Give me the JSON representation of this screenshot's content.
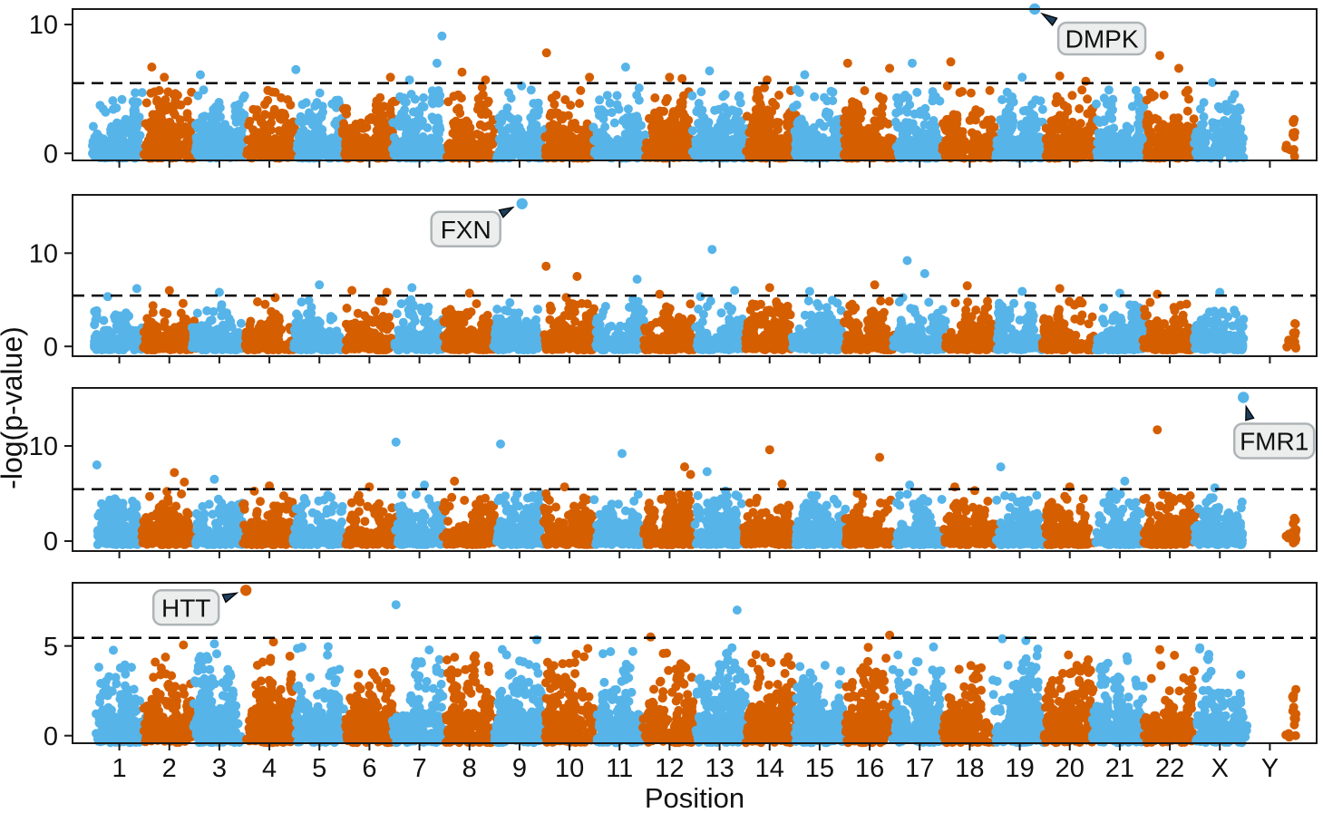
{
  "chart_data": {
    "type": "scatter",
    "subtype": "manhattan",
    "xlabel": "Position",
    "ylabel": "-log(p-value)",
    "categories": [
      "1",
      "2",
      "3",
      "4",
      "5",
      "6",
      "7",
      "8",
      "9",
      "10",
      "11",
      "12",
      "13",
      "14",
      "15",
      "16",
      "17",
      "18",
      "19",
      "20",
      "21",
      "22",
      "X",
      "Y"
    ],
    "threshold": 5.45,
    "grid": false,
    "seed": 11,
    "colors": {
      "chrom_odd": "#56B4E9",
      "chrom_even": "#D55E00",
      "threshold": "#000000",
      "box_fill": "#ECEEEE",
      "box_border": "#AEB4B6",
      "arrow": "#1C3F5E"
    },
    "panels": [
      {
        "gene": "DMPK",
        "ylim": [
          -0.55,
          11.2
        ],
        "yticks": [
          10,
          0
        ],
        "hit": {
          "chrom": "19",
          "frac": 0.8,
          "value": 11.2
        },
        "peaks": [
          [
            "2",
            0.15,
            6.7
          ],
          [
            "2",
            0.4,
            5.9
          ],
          [
            "3",
            0.12,
            6.1
          ],
          [
            "5",
            0.03,
            6.5
          ],
          [
            "6",
            0.92,
            5.9
          ],
          [
            "7",
            0.95,
            9.1
          ],
          [
            "7",
            0.85,
            7.0
          ],
          [
            "7",
            0.3,
            5.7
          ],
          [
            "8",
            0.35,
            6.3
          ],
          [
            "8",
            0.82,
            5.7
          ],
          [
            "10",
            0.04,
            7.8
          ],
          [
            "10",
            0.9,
            5.9
          ],
          [
            "11",
            0.62,
            6.7
          ],
          [
            "12",
            0.5,
            5.9
          ],
          [
            "12",
            0.75,
            5.8
          ],
          [
            "13",
            0.3,
            6.4
          ],
          [
            "14",
            0.45,
            5.7
          ],
          [
            "15",
            0.2,
            6.1
          ],
          [
            "16",
            0.06,
            7.0
          ],
          [
            "16",
            0.9,
            6.6
          ],
          [
            "17",
            0.35,
            7.0
          ],
          [
            "18",
            0.12,
            7.1
          ],
          [
            "19",
            0.55,
            5.9
          ],
          [
            "20",
            0.3,
            6.0
          ],
          [
            "20",
            0.82,
            5.6
          ],
          [
            "22",
            0.3,
            7.6
          ],
          [
            "22",
            0.68,
            6.6
          ],
          [
            "X",
            0.35,
            5.5
          ]
        ]
      },
      {
        "gene": "FXN",
        "ylim": [
          -1.05,
          16.25
        ],
        "yticks": [
          10,
          0
        ],
        "hit": {
          "chrom": "9",
          "frac": 0.55,
          "value": 15.3
        },
        "peaks": [
          [
            "1",
            0.85,
            6.2
          ],
          [
            "2",
            0.5,
            6.0
          ],
          [
            "3",
            0.5,
            5.8
          ],
          [
            "5",
            0.5,
            6.6
          ],
          [
            "6",
            0.15,
            6.0
          ],
          [
            "6",
            0.85,
            5.8
          ],
          [
            "7",
            0.35,
            6.3
          ],
          [
            "8",
            0.5,
            5.7
          ],
          [
            "10",
            0.03,
            8.6
          ],
          [
            "10",
            0.65,
            7.5
          ],
          [
            "11",
            0.85,
            7.2
          ],
          [
            "12",
            0.3,
            5.6
          ],
          [
            "13",
            0.35,
            10.4
          ],
          [
            "13",
            0.8,
            6.0
          ],
          [
            "14",
            0.5,
            6.3
          ],
          [
            "15",
            0.3,
            5.9
          ],
          [
            "16",
            0.6,
            6.6
          ],
          [
            "17",
            0.25,
            9.2
          ],
          [
            "17",
            0.6,
            7.8
          ],
          [
            "18",
            0.45,
            6.5
          ],
          [
            "19",
            0.55,
            5.9
          ],
          [
            "20",
            0.3,
            6.2
          ],
          [
            "21",
            0.5,
            5.7
          ],
          [
            "22",
            0.25,
            5.6
          ],
          [
            "X",
            0.5,
            5.8
          ]
        ]
      },
      {
        "gene": "FMR1",
        "ylim": [
          -1.05,
          16.1
        ],
        "yticks": [
          10,
          0
        ],
        "hit": {
          "chrom": "X",
          "frac": 0.97,
          "value": 15.1
        },
        "peaks": [
          [
            "1",
            0.05,
            8.0
          ],
          [
            "2",
            0.6,
            7.2
          ],
          [
            "2",
            0.8,
            6.2
          ],
          [
            "3",
            0.4,
            6.5
          ],
          [
            "4",
            0.5,
            5.8
          ],
          [
            "6",
            0.5,
            5.7
          ],
          [
            "7",
            0.03,
            10.4
          ],
          [
            "7",
            0.6,
            5.9
          ],
          [
            "8",
            0.2,
            6.3
          ],
          [
            "9",
            0.12,
            10.2
          ],
          [
            "10",
            0.4,
            5.7
          ],
          [
            "11",
            0.55,
            9.2
          ],
          [
            "12",
            0.8,
            7.8
          ],
          [
            "12",
            0.92,
            7.0
          ],
          [
            "13",
            0.25,
            7.3
          ],
          [
            "14",
            0.5,
            9.6
          ],
          [
            "14",
            0.75,
            6.0
          ],
          [
            "16",
            0.7,
            8.8
          ],
          [
            "17",
            0.3,
            5.9
          ],
          [
            "18",
            0.2,
            5.7
          ],
          [
            "19",
            0.12,
            7.8
          ],
          [
            "20",
            0.5,
            5.7
          ],
          [
            "21",
            0.6,
            6.3
          ],
          [
            "22",
            0.25,
            11.7
          ],
          [
            "X",
            0.4,
            5.6
          ]
        ]
      },
      {
        "gene": "HTT",
        "ylim": [
          -0.42,
          8.52
        ],
        "yticks": [
          5,
          0
        ],
        "hit": {
          "chrom": "4",
          "frac": 0.03,
          "value": 8.1
        },
        "peaks": [
          [
            "7",
            0.03,
            7.3
          ],
          [
            "12",
            0.12,
            5.5
          ],
          [
            "13",
            0.85,
            7.0
          ],
          [
            "16",
            0.9,
            5.6
          ],
          [
            "19",
            0.15,
            5.4
          ],
          [
            "22",
            0.3,
            4.8
          ],
          [
            "X",
            0.1,
            4.9
          ]
        ]
      }
    ]
  }
}
